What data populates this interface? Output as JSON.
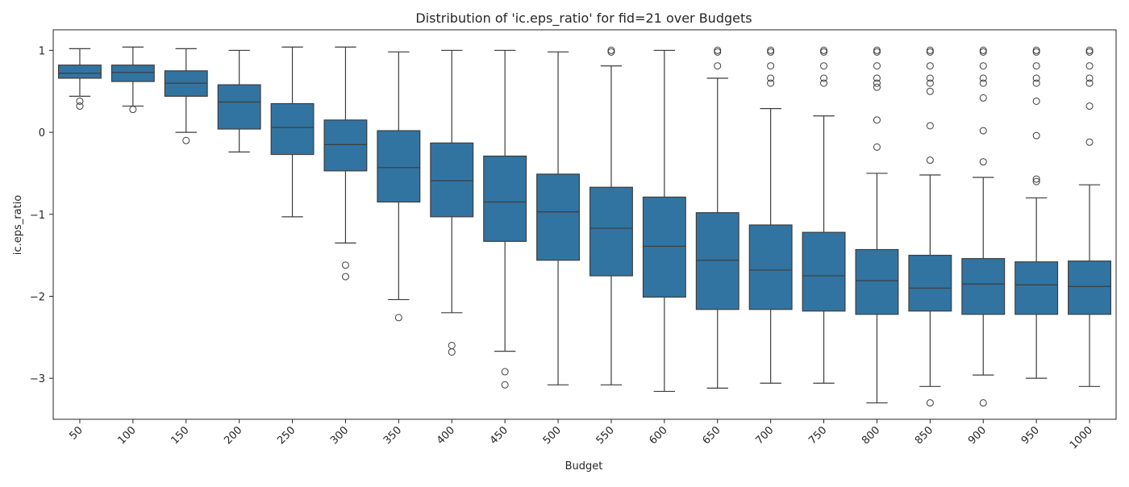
{
  "chart_data": {
    "type": "box",
    "title": "Distribution of 'ic.eps_ratio' for fid=21 over Budgets",
    "xlabel": "Budget",
    "ylabel": "ic.eps_ratio",
    "ylim": [
      -3.5,
      1.25
    ],
    "yticks": [
      1,
      0,
      -1,
      -2,
      -3
    ],
    "ytick_labels": [
      "1",
      "0",
      "−1",
      "−2",
      "−3"
    ],
    "grid": false,
    "legend": "none",
    "box_color": "#3274a1",
    "line_color": "#3d3d3d",
    "categories": [
      "50",
      "100",
      "150",
      "200",
      "250",
      "300",
      "350",
      "400",
      "450",
      "500",
      "550",
      "600",
      "650",
      "700",
      "750",
      "800",
      "850",
      "900",
      "950",
      "1000"
    ],
    "boxes": [
      {
        "whislo": 0.44,
        "q1": 0.66,
        "med": 0.72,
        "q3": 0.82,
        "whishi": 1.02,
        "fliers": [
          0.38,
          0.32
        ]
      },
      {
        "whislo": 0.32,
        "q1": 0.62,
        "med": 0.73,
        "q3": 0.82,
        "whishi": 1.04,
        "fliers": [
          0.28
        ]
      },
      {
        "whislo": 0.0,
        "q1": 0.44,
        "med": 0.6,
        "q3": 0.75,
        "whishi": 1.02,
        "fliers": [
          -0.1
        ]
      },
      {
        "whislo": -0.24,
        "q1": 0.04,
        "med": 0.37,
        "q3": 0.58,
        "whishi": 1.0,
        "fliers": []
      },
      {
        "whislo": -1.03,
        "q1": -0.27,
        "med": 0.06,
        "q3": 0.35,
        "whishi": 1.04,
        "fliers": []
      },
      {
        "whislo": -1.35,
        "q1": -0.47,
        "med": -0.15,
        "q3": 0.15,
        "whishi": 1.04,
        "fliers": [
          -1.62,
          -1.76
        ]
      },
      {
        "whislo": -2.04,
        "q1": -0.85,
        "med": -0.43,
        "q3": 0.02,
        "whishi": 0.98,
        "fliers": [
          -2.26
        ]
      },
      {
        "whislo": -2.2,
        "q1": -1.03,
        "med": -0.59,
        "q3": -0.13,
        "whishi": 1.0,
        "fliers": [
          -2.6,
          -2.68
        ]
      },
      {
        "whislo": -2.67,
        "q1": -1.33,
        "med": -0.85,
        "q3": -0.29,
        "whishi": 1.0,
        "fliers": [
          -2.92,
          -3.08
        ]
      },
      {
        "whislo": -3.08,
        "q1": -1.56,
        "med": -0.97,
        "q3": -0.51,
        "whishi": 0.98,
        "fliers": []
      },
      {
        "whislo": -3.08,
        "q1": -1.75,
        "med": -1.17,
        "q3": -0.67,
        "whishi": 0.81,
        "fliers": [
          0.98,
          1.0
        ]
      },
      {
        "whislo": -3.16,
        "q1": -2.01,
        "med": -1.39,
        "q3": -0.79,
        "whishi": 1.0,
        "fliers": []
      },
      {
        "whislo": -3.12,
        "q1": -2.16,
        "med": -1.56,
        "q3": -0.98,
        "whishi": 0.66,
        "fliers": [
          0.81,
          0.98,
          1.0
        ]
      },
      {
        "whislo": -3.06,
        "q1": -2.16,
        "med": -1.68,
        "q3": -1.13,
        "whishi": 0.29,
        "fliers": [
          0.6,
          0.66,
          0.81,
          0.98,
          1.0
        ]
      },
      {
        "whislo": -3.06,
        "q1": -2.18,
        "med": -1.75,
        "q3": -1.22,
        "whishi": 0.2,
        "fliers": [
          0.6,
          0.66,
          0.81,
          0.98,
          1.0
        ]
      },
      {
        "whislo": -3.3,
        "q1": -2.22,
        "med": -1.81,
        "q3": -1.43,
        "whishi": -0.5,
        "fliers": [
          -0.18,
          0.15,
          0.55,
          0.6,
          0.66,
          0.81,
          0.98,
          1.0
        ]
      },
      {
        "whislo": -3.1,
        "q1": -2.18,
        "med": -1.9,
        "q3": -1.5,
        "whishi": -0.52,
        "fliers": [
          -3.3,
          -0.34,
          0.08,
          0.5,
          0.6,
          0.66,
          0.81,
          0.98,
          1.0
        ]
      },
      {
        "whislo": -2.96,
        "q1": -2.22,
        "med": -1.85,
        "q3": -1.54,
        "whishi": -0.55,
        "fliers": [
          -3.3,
          -0.36,
          0.02,
          0.42,
          0.6,
          0.66,
          0.81,
          0.98,
          1.0
        ]
      },
      {
        "whislo": -3.0,
        "q1": -2.22,
        "med": -1.86,
        "q3": -1.58,
        "whishi": -0.8,
        "fliers": [
          -0.6,
          -0.57,
          -0.04,
          0.38,
          0.6,
          0.66,
          0.81,
          0.98,
          1.0
        ]
      },
      {
        "whislo": -3.1,
        "q1": -2.22,
        "med": -1.88,
        "q3": -1.57,
        "whishi": -0.64,
        "fliers": [
          -0.12,
          0.32,
          0.6,
          0.66,
          0.81,
          0.98,
          1.0
        ]
      }
    ]
  }
}
